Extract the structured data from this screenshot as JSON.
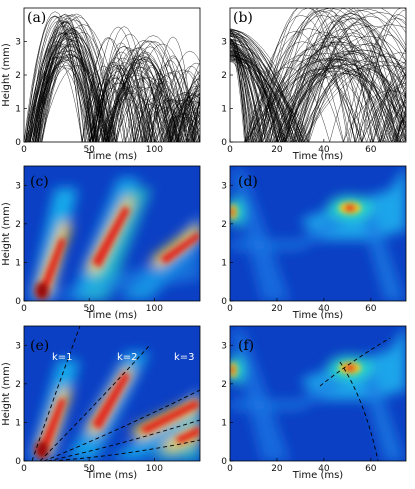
{
  "figure": {
    "panels": [
      {
        "label": "(a)",
        "xlabel": "Time (ms)",
        "ylabel": "Height (mm)"
      },
      {
        "label": "(b)",
        "xlabel": "Time (ms)",
        "ylabel": ""
      },
      {
        "label": "(c)",
        "xlabel": "Time (ms)",
        "ylabel": "Height (mm)"
      },
      {
        "label": "(d)",
        "xlabel": "Time (ms)",
        "ylabel": ""
      },
      {
        "label": "(e)",
        "xlabel": "Time (ms)",
        "ylabel": "Height (mm)"
      },
      {
        "label": "(f)",
        "xlabel": "Time (ms)",
        "ylabel": ""
      }
    ],
    "annotations": [
      "k=1",
      "k=2",
      "k=3"
    ]
  },
  "chart_data": [
    {
      "type": "line",
      "panel": "(a)",
      "xlabel": "Time (ms)",
      "ylabel": "Height (mm)",
      "xlim": [
        0,
        135
      ],
      "ylim": [
        0,
        4
      ],
      "xticks": [
        0,
        50,
        100
      ],
      "yticks": [
        0,
        1,
        2,
        3
      ],
      "note": "many overlapping bouncing-trajectory curves"
    },
    {
      "type": "line",
      "panel": "(b)",
      "xlabel": "Time (ms)",
      "ylabel": "",
      "xlim": [
        0,
        75
      ],
      "ylim": [
        0,
        4
      ],
      "xticks": [
        0,
        20,
        40,
        60
      ],
      "yticks": [
        0,
        1,
        2,
        3
      ],
      "note": "many overlapping bouncing-trajectory curves"
    },
    {
      "type": "heatmap",
      "panel": "(c)",
      "xlabel": "Time (ms)",
      "ylabel": "Height (mm)",
      "xlim": [
        0,
        135
      ],
      "ylim": [
        0,
        3.5
      ],
      "xticks": [
        0,
        50,
        100
      ],
      "yticks": [
        0,
        1,
        2,
        3
      ]
    },
    {
      "type": "heatmap",
      "panel": "(d)",
      "xlabel": "Time (ms)",
      "ylabel": "",
      "xlim": [
        0,
        75
      ],
      "ylim": [
        0,
        3.5
      ],
      "xticks": [
        0,
        20,
        40,
        60
      ],
      "yticks": [
        0,
        1,
        2,
        3
      ]
    },
    {
      "type": "heatmap",
      "panel": "(e)",
      "xlabel": "Time (ms)",
      "ylabel": "Height (mm)",
      "xlim": [
        0,
        135
      ],
      "ylim": [
        0,
        3.5
      ],
      "xticks": [
        0,
        50,
        100
      ],
      "yticks": [
        0,
        1,
        2,
        3
      ],
      "annotations": [
        "k=1",
        "k=2",
        "k=3"
      ]
    },
    {
      "type": "heatmap",
      "panel": "(f)",
      "xlabel": "Time (ms)",
      "ylabel": "",
      "xlim": [
        0,
        75
      ],
      "ylim": [
        0,
        3.5
      ],
      "xticks": [
        0,
        20,
        40,
        60
      ],
      "yticks": [
        0,
        1,
        2,
        3
      ]
    }
  ]
}
